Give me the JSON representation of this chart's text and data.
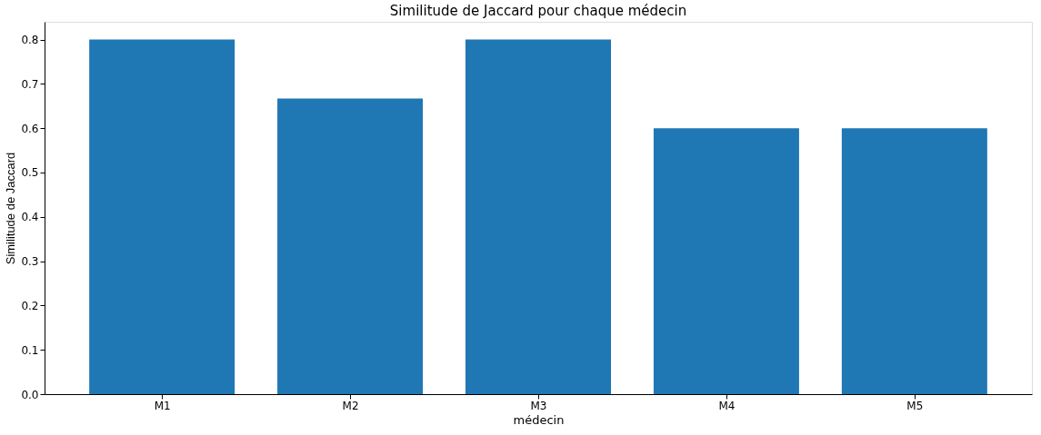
{
  "chart_data": {
    "type": "bar",
    "title": "Similitude de Jaccard pour chaque médecin",
    "xlabel": "médecin",
    "ylabel": "Similitude de Jaccard",
    "categories": [
      "M1",
      "M2",
      "M3",
      "M4",
      "M5"
    ],
    "values": [
      0.8,
      0.667,
      0.8,
      0.6,
      0.6
    ],
    "color": "#1f77b4",
    "ylim": [
      0,
      0.84
    ],
    "yticks": [
      {
        "value": 0,
        "label": "0.0"
      },
      0.1,
      0.2,
      0.3,
      0.4,
      0.5,
      0.6,
      0.7,
      0.8
    ],
    "grid": false
  }
}
